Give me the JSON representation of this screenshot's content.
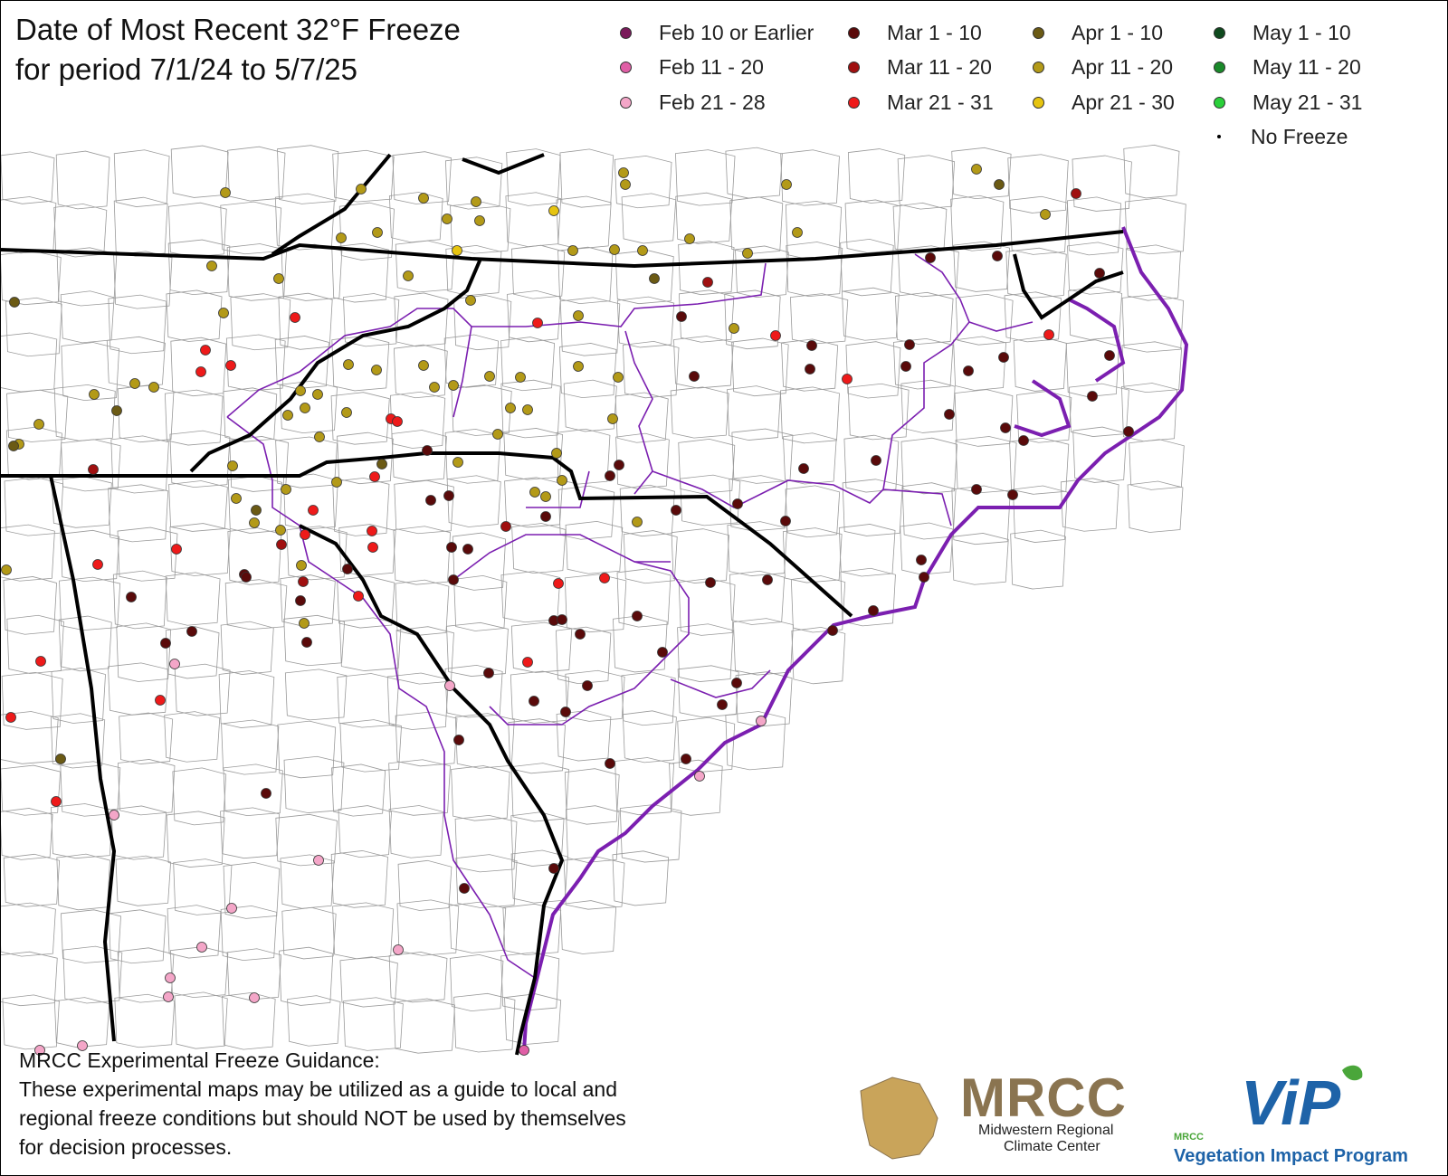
{
  "title_line1": "Date of Most Recent 32°F Freeze",
  "title_line2": "for period 7/1/24 to 5/7/25",
  "legend": [
    {
      "label": "Feb 10 or Earlier",
      "color": "#7a1a5a"
    },
    {
      "label": "Feb 11 - 20",
      "color": "#e05fa6"
    },
    {
      "label": "Feb 21 - 28",
      "color": "#f4a6c8"
    },
    {
      "label": "Mar 1 - 10",
      "color": "#5a0a0a"
    },
    {
      "label": "Mar 11 - 20",
      "color": "#a01010"
    },
    {
      "label": "Mar 21 - 31",
      "color": "#ee1a1a"
    },
    {
      "label": "Apr 1 - 10",
      "color": "#6b5a14"
    },
    {
      "label": "Apr 11 - 20",
      "color": "#b39a18"
    },
    {
      "label": "Apr 21 - 30",
      "color": "#e6c410"
    },
    {
      "label": "May 1 - 10",
      "color": "#0f4a1e"
    },
    {
      "label": "May 11 - 20",
      "color": "#1a8a2a"
    },
    {
      "label": "May 21 - 31",
      "color": "#2ad03a"
    },
    {
      "label": "No Freeze",
      "color": "#000000"
    }
  ],
  "disclaimer": {
    "line1": "MRCC Experimental Freeze Guidance:",
    "line2": "These experimental maps may be utilized as a guide to local and",
    "line3": "regional freeze conditions but should NOT be used by themselves",
    "line4": "for decision processes."
  },
  "logos": {
    "mrcc_name": "MRCC",
    "mrcc_sub1": "Midwestern Regional",
    "mrcc_sub2": "Climate Center",
    "vip_name": "ViP",
    "vip_mrcc": "MRCC",
    "vip_sub": "Vegetation Impact Program"
  },
  "colors": {
    "state_border": "#000000",
    "climate_division": "#7b1fb0",
    "county_line": "#8a8a8a",
    "background": "#ffffff"
  }
}
